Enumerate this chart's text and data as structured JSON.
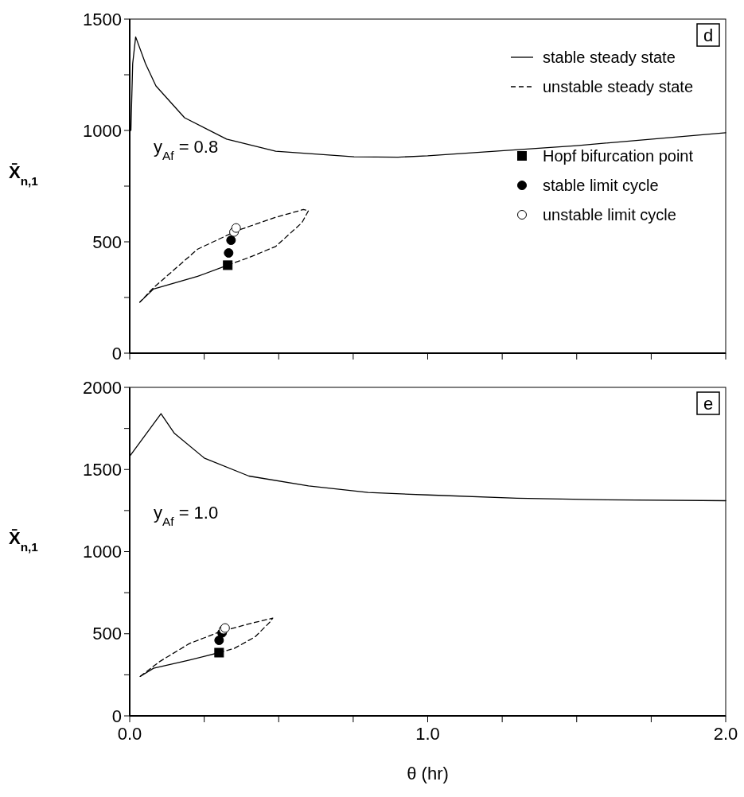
{
  "chart_data": [
    {
      "type": "line",
      "ylabel": "X̄$_{n,1}$",
      "annotations": [
        "d",
        "y$_{Af}$ = 0.8"
      ],
      "xlim": [
        0,
        2
      ],
      "ylim": [
        0,
        1500
      ],
      "xticks": [
        {
          "value": 0,
          "label": null
        },
        {
          "value": 0.25,
          "label": null
        },
        {
          "value": 0.5,
          "label": null
        },
        {
          "value": 0.75,
          "label": null
        },
        {
          "value": 1,
          "label": null
        },
        {
          "value": 1.25,
          "label": null
        },
        {
          "value": 1.5,
          "label": null
        },
        {
          "value": 1.75,
          "label": null
        },
        {
          "value": 2,
          "label": null
        }
      ],
      "yticks": [
        0,
        {
          "value": 250,
          "label": null
        },
        500,
        {
          "value": 750,
          "label": null
        },
        1000,
        {
          "value": 1250,
          "label": null
        },
        1500
      ],
      "tick_labels": "y",
      "legend": "top right",
      "grid": false,
      "series": [
        {
          "name": "stable steady state",
          "type": "line",
          "line_style": "solid",
          "color": "#000000",
          "x": [
            0.004,
            0.01,
            0.02,
            0.053,
            0.088,
            0.184,
            0.325,
            0.49,
            0.753,
            0.9,
            1.0,
            1.5,
            2.0,
            null,
            0.034,
            0.08,
            0.228,
            0.329
          ],
          "values": [
            1000,
            1300,
            1420,
            1300,
            1200,
            1057,
            961,
            907,
            882,
            880,
            886,
            932,
            990,
            null,
            229,
            288,
            345,
            395
          ]
        },
        {
          "name": "unstable steady state",
          "type": "line",
          "line_style": "dashed",
          "color": "#000000",
          "x": [
            0.329,
            0.403,
            0.49,
            0.578,
            0.6,
            0.583,
            0.49,
            0.36,
            0.228,
            0.08,
            0.034
          ],
          "values": [
            395,
            431,
            479,
            586,
            640,
            645,
            610,
            550,
            467,
            294,
            229
          ]
        },
        {
          "name": "Hopf bifurcation point",
          "type": "scatter",
          "marker": "square",
          "color": "#000000",
          "x": [
            0.329
          ],
          "values": [
            395
          ]
        },
        {
          "name": "stable limit cycle",
          "type": "scatter",
          "marker": "circle",
          "color": "#000000",
          "x": [
            0.332,
            0.34
          ],
          "values": [
            450,
            507
          ]
        },
        {
          "name": "unstable limit cycle",
          "type": "scatter",
          "marker": "circle",
          "color": "#ffffff",
          "x": [
            0.35,
            0.357
          ],
          "values": [
            544,
            562
          ]
        }
      ]
    },
    {
      "type": "line",
      "ylabel": "X̄$_{n,1}$",
      "xlabel": "θ (hr)",
      "annotations": [
        "e",
        "y$_{Af}$ = 1.0"
      ],
      "xlim": [
        0,
        2
      ],
      "ylim": [
        0,
        2000
      ],
      "xticks": [
        {
          "value": 0,
          "label": "0.0"
        },
        {
          "value": 0.25,
          "label": null
        },
        {
          "value": 0.5,
          "label": null
        },
        {
          "value": 0.75,
          "label": null
        },
        {
          "value": 1,
          "label": "1.0"
        },
        {
          "value": 1.25,
          "label": null
        },
        {
          "value": 1.5,
          "label": null
        },
        {
          "value": 1.75,
          "label": null
        },
        {
          "value": 2,
          "label": "2.0"
        }
      ],
      "yticks": [
        0,
        {
          "value": 250,
          "label": null
        },
        500,
        {
          "value": 750,
          "label": null
        },
        1000,
        {
          "value": 1250,
          "label": null
        },
        1500,
        {
          "value": 1750,
          "label": null
        },
        2000
      ],
      "grid": false,
      "series": [
        {
          "type": "line",
          "line_style": "solid",
          "color": "#000000",
          "x": [
            0,
            0.105,
            0.15,
            0.25,
            0.4,
            0.6,
            0.8,
            1.0,
            1.3,
            1.6,
            2.0,
            null,
            0.035,
            0.08,
            0.2,
            0.3
          ],
          "values": [
            1580,
            1840,
            1720,
            1570,
            1460,
            1400,
            1360,
            1345,
            1325,
            1315,
            1310,
            null,
            240,
            290,
            340,
            385
          ]
        },
        {
          "type": "line",
          "line_style": "dashed",
          "color": "#000000",
          "x": [
            0.3,
            0.35,
            0.42,
            0.47,
            0.48,
            0.4,
            0.3,
            0.2,
            0.1,
            0.035
          ],
          "values": [
            385,
            410,
            480,
            570,
            595,
            560,
            510,
            440,
            330,
            240
          ]
        },
        {
          "type": "scatter",
          "marker": "square",
          "color": "#000000",
          "x": [
            0.3
          ],
          "values": [
            385
          ]
        },
        {
          "type": "scatter",
          "marker": "circle",
          "color": "#000000",
          "x": [
            0.3,
            0.31
          ],
          "values": [
            460,
            505
          ]
        },
        {
          "type": "scatter",
          "marker": "circle",
          "color": "#ffffff",
          "x": [
            0.315,
            0.32
          ],
          "values": [
            525,
            535
          ]
        }
      ]
    }
  ]
}
